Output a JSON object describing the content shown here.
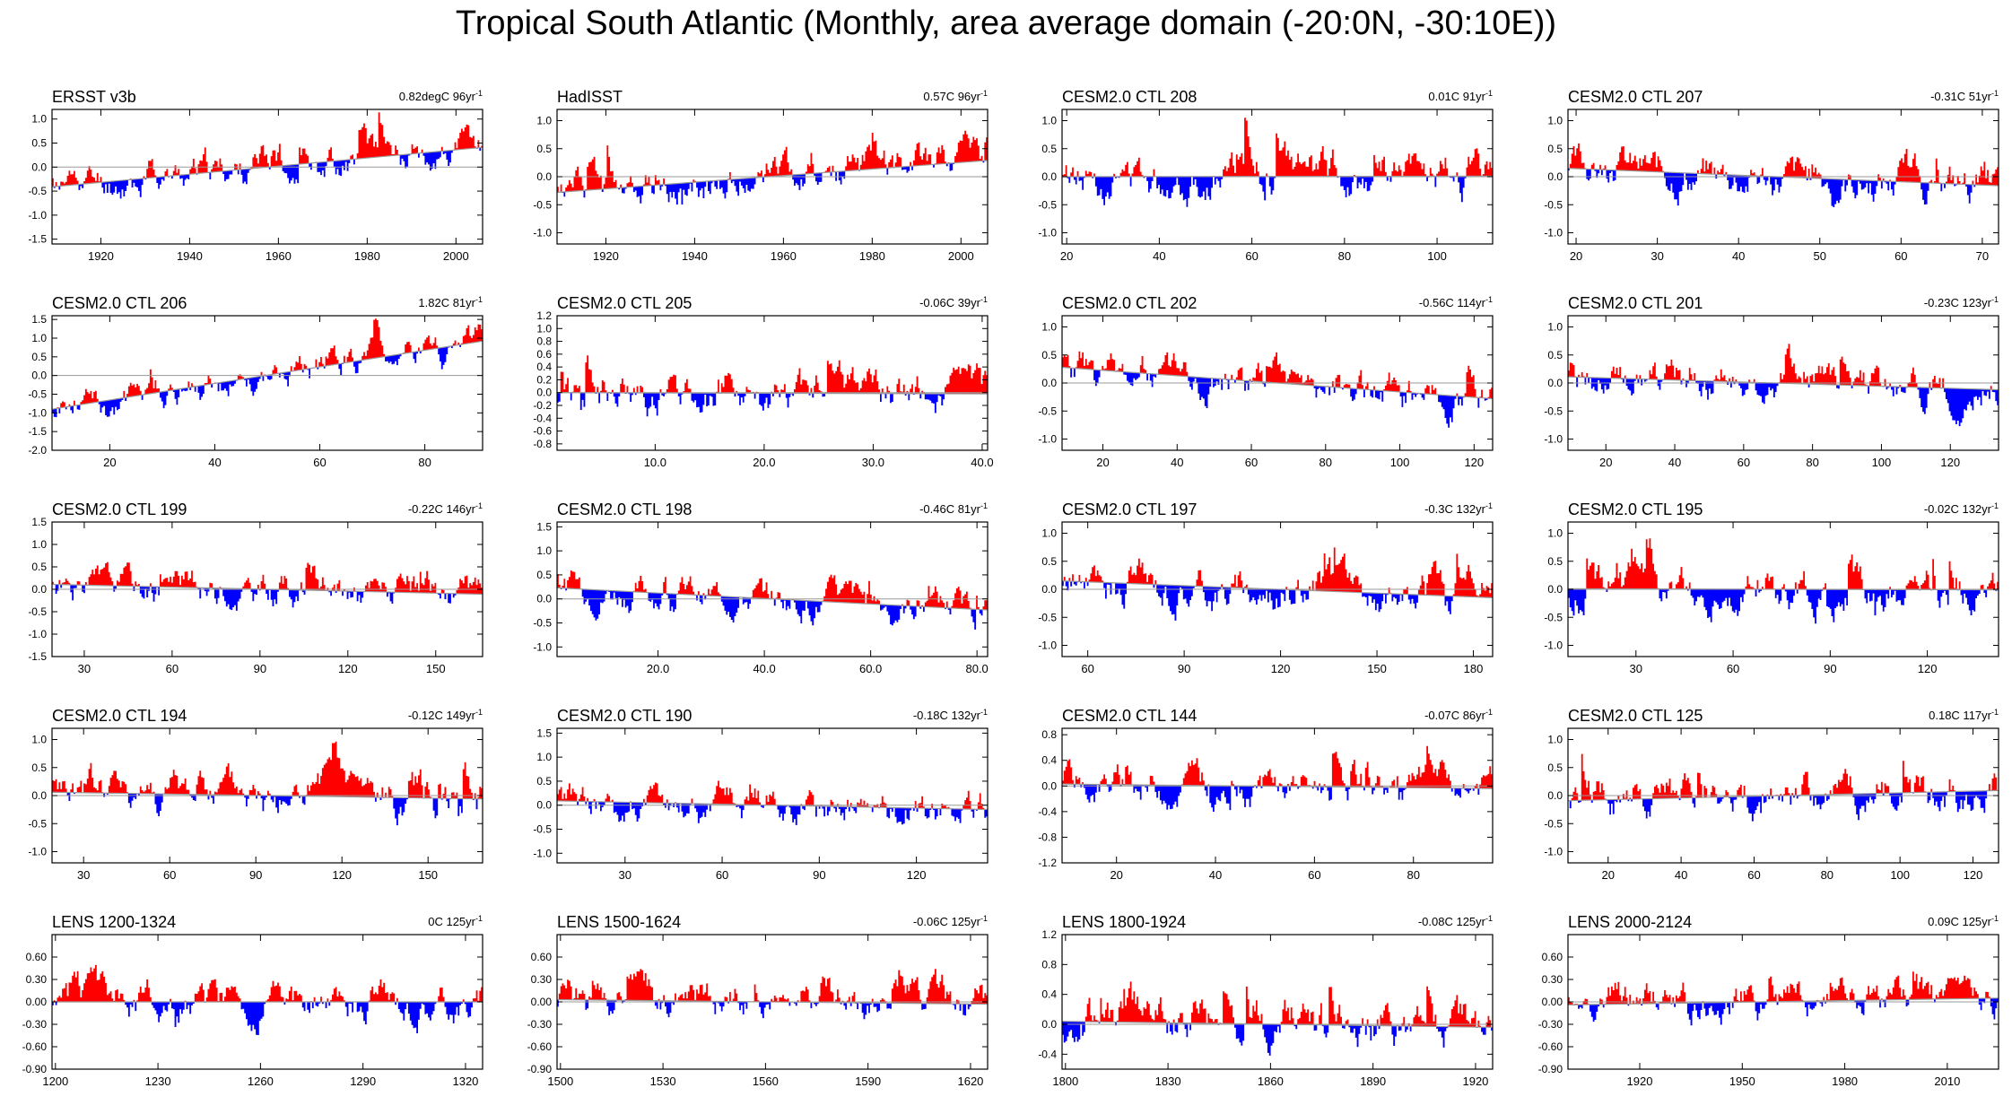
{
  "title": "Tropical South Atlantic (Monthly, area average domain (-20:0N, -30:10E))",
  "colors": {
    "positive": "#ff0000",
    "negative": "#0000ff",
    "trend": "#9a9a9a",
    "frame": "#000000"
  },
  "chart_data": [
    {
      "type": "bar",
      "title": "ERSST v3b",
      "trend_label": "0.82degC 96yr",
      "trend_sup": "-1",
      "xlim": [
        1909,
        2006
      ],
      "ylim": [
        -1.6,
        1.2
      ],
      "yticks": [
        -1.5,
        -1.0,
        -0.5,
        0.0,
        0.5,
        1.0
      ],
      "ytick_labels": [
        "-1.5",
        "-1.0",
        "-0.5",
        "0.0",
        "0.5",
        "1.0"
      ],
      "xticks": [
        1920,
        1940,
        1960,
        1980,
        2000
      ],
      "xtick_labels": [
        "1920",
        "1940",
        "1960",
        "1980",
        "2000"
      ],
      "trend": [
        -0.41,
        0.41
      ],
      "amp": 0.45,
      "seed": 11
    },
    {
      "type": "bar",
      "title": "HadISST",
      "trend_label": "0.57C 96yr",
      "trend_sup": "-1",
      "xlim": [
        1909,
        2006
      ],
      "ylim": [
        -1.2,
        1.2
      ],
      "yticks": [
        -1.0,
        -0.5,
        0.0,
        0.5,
        1.0
      ],
      "ytick_labels": [
        "-1.0",
        "-0.5",
        "0.0",
        "0.5",
        "1.0"
      ],
      "xticks": [
        1920,
        1940,
        1960,
        1980,
        2000
      ],
      "xtick_labels": [
        "1920",
        "1940",
        "1960",
        "1980",
        "2000"
      ],
      "trend": [
        -0.28,
        0.29
      ],
      "amp": 0.42,
      "seed": 12
    },
    {
      "type": "bar",
      "title": "CESM2.0 CTL 208",
      "trend_label": "0.01C 91yr",
      "trend_sup": "-1",
      "xlim": [
        19,
        112
      ],
      "ylim": [
        -1.2,
        1.2
      ],
      "yticks": [
        -1.0,
        -0.5,
        0.0,
        0.5,
        1.0
      ],
      "ytick_labels": [
        "-1.0",
        "-0.5",
        "0.0",
        "0.5",
        "1.0"
      ],
      "xticks": [
        20,
        40,
        60,
        80,
        100
      ],
      "xtick_labels": [
        "20",
        "40",
        "60",
        "80",
        "100"
      ],
      "trend": [
        0.0,
        0.01
      ],
      "amp": 0.45,
      "seed": 13
    },
    {
      "type": "bar",
      "title": "CESM2.0 CTL 207",
      "trend_label": "-0.31C 51yr",
      "trend_sup": "-1",
      "xlim": [
        19,
        72
      ],
      "ylim": [
        -1.2,
        1.2
      ],
      "yticks": [
        -1.0,
        -0.5,
        0.0,
        0.5,
        1.0
      ],
      "ytick_labels": [
        "-1.0",
        "-0.5",
        "0.0",
        "0.5",
        "1.0"
      ],
      "xticks": [
        20,
        30,
        40,
        50,
        60,
        70
      ],
      "xtick_labels": [
        "20",
        "30",
        "40",
        "50",
        "60",
        "70"
      ],
      "trend": [
        0.15,
        -0.16
      ],
      "amp": 0.45,
      "seed": 14
    },
    {
      "type": "bar",
      "title": "CESM2.0 CTL 206",
      "trend_label": "1.82C 81yr",
      "trend_sup": "-1",
      "xlim": [
        9,
        91
      ],
      "ylim": [
        -2.0,
        1.6
      ],
      "yticks": [
        -2.0,
        -1.5,
        -1.0,
        -0.5,
        0.0,
        0.5,
        1.0,
        1.5
      ],
      "ytick_labels": [
        "-2.0",
        "-1.5",
        "-1.0",
        "-0.5",
        "0.0",
        "0.5",
        "1.0",
        "1.5"
      ],
      "xticks": [
        20,
        40,
        60,
        80
      ],
      "xtick_labels": [
        "20",
        "40",
        "60",
        "80"
      ],
      "trend": [
        -0.9,
        0.92
      ],
      "amp": 0.5,
      "seed": 21
    },
    {
      "type": "bar",
      "title": "CESM2.0 CTL 205",
      "trend_label": "-0.06C 39yr",
      "trend_sup": "-1",
      "xlim": [
        1,
        40.5
      ],
      "ylim": [
        -0.9,
        1.2
      ],
      "yticks": [
        -0.8,
        -0.6,
        -0.4,
        -0.2,
        0.0,
        0.2,
        0.4,
        0.6,
        0.8,
        1.0,
        1.2
      ],
      "ytick_labels": [
        "-0.8",
        "-0.6",
        "-0.4",
        "-0.2",
        "0.0",
        "0.2",
        "0.4",
        "0.6",
        "0.8",
        "1.0",
        "1.2"
      ],
      "xticks": [
        10,
        20,
        30,
        40
      ],
      "xtick_labels": [
        "10.0",
        "20.0",
        "30.0",
        "40.0"
      ],
      "trend": [
        0.0,
        -0.02
      ],
      "amp": 0.4,
      "seed": 22
    },
    {
      "type": "bar",
      "title": "CESM2.0 CTL 202",
      "trend_label": "-0.56C 114yr",
      "trend_sup": "-1",
      "xlim": [
        9,
        125
      ],
      "ylim": [
        -1.2,
        1.2
      ],
      "yticks": [
        -1.0,
        -0.5,
        0.0,
        0.5,
        1.0
      ],
      "ytick_labels": [
        "-1.0",
        "-0.5",
        "0.0",
        "0.5",
        "1.0"
      ],
      "xticks": [
        20,
        40,
        60,
        80,
        100,
        120
      ],
      "xtick_labels": [
        "20",
        "40",
        "60",
        "80",
        "100",
        "120"
      ],
      "trend": [
        0.28,
        -0.28
      ],
      "amp": 0.42,
      "seed": 23
    },
    {
      "type": "bar",
      "title": "CESM2.0 CTL 201",
      "trend_label": "-0.23C 123yr",
      "trend_sup": "-1",
      "xlim": [
        9,
        134
      ],
      "ylim": [
        -1.2,
        1.2
      ],
      "yticks": [
        -1.0,
        -0.5,
        0.0,
        0.5,
        1.0
      ],
      "ytick_labels": [
        "-1.0",
        "-0.5",
        "0.0",
        "0.5",
        "1.0"
      ],
      "xticks": [
        20,
        40,
        60,
        80,
        100,
        120
      ],
      "xtick_labels": [
        "20",
        "40",
        "60",
        "80",
        "100",
        "120"
      ],
      "trend": [
        0.11,
        -0.12
      ],
      "amp": 0.42,
      "seed": 24
    },
    {
      "type": "bar",
      "title": "CESM2.0 CTL 199",
      "trend_label": "-0.22C 146yr",
      "trend_sup": "-1",
      "xlim": [
        19,
        166
      ],
      "ylim": [
        -1.5,
        1.5
      ],
      "yticks": [
        -1.5,
        -1.0,
        -0.5,
        0.0,
        0.5,
        1.0,
        1.5
      ],
      "ytick_labels": [
        "-1.5",
        "-1.0",
        "-0.5",
        "0.0",
        "0.5",
        "1.0",
        "1.5"
      ],
      "xticks": [
        30,
        60,
        90,
        120,
        150
      ],
      "xtick_labels": [
        "30",
        "60",
        "90",
        "120",
        "150"
      ],
      "trend": [
        0.11,
        -0.11
      ],
      "amp": 0.45,
      "seed": 31
    },
    {
      "type": "bar",
      "title": "CESM2.0 CTL 198",
      "trend_label": "-0.46C 81yr",
      "trend_sup": "-1",
      "xlim": [
        1,
        82
      ],
      "ylim": [
        -1.2,
        1.6
      ],
      "yticks": [
        -1.0,
        -0.5,
        0.0,
        0.5,
        1.0,
        1.5
      ],
      "ytick_labels": [
        "-1.0",
        "-0.5",
        "0.0",
        "0.5",
        "1.0",
        "1.5"
      ],
      "xticks": [
        20,
        40,
        60,
        80
      ],
      "xtick_labels": [
        "20.0",
        "40.0",
        "60.0",
        "80.0"
      ],
      "trend": [
        0.23,
        -0.23
      ],
      "amp": 0.42,
      "seed": 32
    },
    {
      "type": "bar",
      "title": "CESM2.0 CTL 197",
      "trend_label": "-0.3C 132yr",
      "trend_sup": "-1",
      "xlim": [
        52,
        186
      ],
      "ylim": [
        -1.2,
        1.2
      ],
      "yticks": [
        -1.0,
        -0.5,
        0.0,
        0.5,
        1.0
      ],
      "ytick_labels": [
        "-1.0",
        "-0.5",
        "0.0",
        "0.5",
        "1.0"
      ],
      "xticks": [
        60,
        90,
        120,
        150,
        180
      ],
      "xtick_labels": [
        "60",
        "90",
        "120",
        "150",
        "180"
      ],
      "trend": [
        0.15,
        -0.15
      ],
      "amp": 0.45,
      "seed": 33
    },
    {
      "type": "bar",
      "title": "CESM2.0 CTL 195",
      "trend_label": "-0.02C 132yr",
      "trend_sup": "-1",
      "xlim": [
        9,
        142
      ],
      "ylim": [
        -1.2,
        1.2
      ],
      "yticks": [
        -1.0,
        -0.5,
        0.0,
        0.5,
        1.0
      ],
      "ytick_labels": [
        "-1.0",
        "-0.5",
        "0.0",
        "0.5",
        "1.0"
      ],
      "xticks": [
        30,
        60,
        90,
        120
      ],
      "xtick_labels": [
        "30",
        "60",
        "90",
        "120"
      ],
      "trend": [
        0.01,
        -0.01
      ],
      "amp": 0.45,
      "seed": 34
    },
    {
      "type": "bar",
      "title": "CESM2.0 CTL 194",
      "trend_label": "-0.12C 149yr",
      "trend_sup": "-1",
      "xlim": [
        19,
        169
      ],
      "ylim": [
        -1.2,
        1.2
      ],
      "yticks": [
        -1.0,
        -0.5,
        0.0,
        0.5,
        1.0
      ],
      "ytick_labels": [
        "-1.0",
        "-0.5",
        "0.0",
        "0.5",
        "1.0"
      ],
      "xticks": [
        30,
        60,
        90,
        120,
        150
      ],
      "xtick_labels": [
        "30",
        "60",
        "90",
        "120",
        "150"
      ],
      "trend": [
        0.06,
        -0.06
      ],
      "amp": 0.45,
      "seed": 41
    },
    {
      "type": "bar",
      "title": "CESM2.0 CTL 190",
      "trend_label": "-0.18C 132yr",
      "trend_sup": "-1",
      "xlim": [
        9,
        142
      ],
      "ylim": [
        -1.2,
        1.6
      ],
      "yticks": [
        -1.0,
        -0.5,
        0.0,
        0.5,
        1.0,
        1.5
      ],
      "ytick_labels": [
        "-1.0",
        "-0.5",
        "0.0",
        "0.5",
        "1.0",
        "1.5"
      ],
      "xticks": [
        30,
        60,
        90,
        120
      ],
      "xtick_labels": [
        "30",
        "60",
        "90",
        "120"
      ],
      "trend": [
        0.09,
        -0.09
      ],
      "amp": 0.45,
      "seed": 42
    },
    {
      "type": "bar",
      "title": "CESM2.0 CTL 144",
      "trend_label": "-0.07C 86yr",
      "trend_sup": "-1",
      "xlim": [
        9,
        96
      ],
      "ylim": [
        -1.2,
        0.9
      ],
      "yticks": [
        -1.2,
        -0.8,
        -0.4,
        0.0,
        0.4,
        0.8
      ],
      "ytick_labels": [
        "-1.2",
        "-0.8",
        "-0.4",
        "0.0",
        "0.4",
        "0.8"
      ],
      "xticks": [
        20,
        40,
        60,
        80
      ],
      "xtick_labels": [
        "20",
        "40",
        "60",
        "80"
      ],
      "trend": [
        0.03,
        -0.04
      ],
      "amp": 0.35,
      "seed": 43
    },
    {
      "type": "bar",
      "title": "CESM2.0 CTL 125",
      "trend_label": "0.18C 117yr",
      "trend_sup": "-1",
      "xlim": [
        9,
        127
      ],
      "ylim": [
        -1.2,
        1.2
      ],
      "yticks": [
        -1.0,
        -0.5,
        0.0,
        0.5,
        1.0
      ],
      "ytick_labels": [
        "-1.0",
        "-0.5",
        "0.0",
        "0.5",
        "1.0"
      ],
      "xticks": [
        20,
        40,
        60,
        80,
        100,
        120
      ],
      "xtick_labels": [
        "20",
        "40",
        "60",
        "80",
        "100",
        "120"
      ],
      "trend": [
        -0.09,
        0.09
      ],
      "amp": 0.45,
      "seed": 44
    },
    {
      "type": "bar",
      "title": "LENS 1200-1324",
      "trend_label": "0C 125yr",
      "trend_sup": "-1",
      "xlim": [
        1199,
        1325
      ],
      "ylim": [
        -0.9,
        0.9
      ],
      "yticks": [
        -0.9,
        -0.6,
        -0.3,
        0.0,
        0.3,
        0.6
      ],
      "ytick_labels": [
        "-0.90",
        "-0.60",
        "-0.30",
        "0.00",
        "0.30",
        "0.60"
      ],
      "xticks": [
        1200,
        1230,
        1260,
        1290,
        1320
      ],
      "xtick_labels": [
        "1200",
        "1230",
        "1260",
        "1290",
        "1320"
      ],
      "trend": [
        0.0,
        0.0
      ],
      "amp": 0.3,
      "seed": 51
    },
    {
      "type": "bar",
      "title": "LENS 1500-1624",
      "trend_label": "-0.06C 125yr",
      "trend_sup": "-1",
      "xlim": [
        1499,
        1625
      ],
      "ylim": [
        -0.9,
        0.9
      ],
      "yticks": [
        -0.9,
        -0.6,
        -0.3,
        0.0,
        0.3,
        0.6
      ],
      "ytick_labels": [
        "-0.90",
        "-0.60",
        "-0.30",
        "0.00",
        "0.30",
        "0.60"
      ],
      "xticks": [
        1500,
        1530,
        1560,
        1590,
        1620
      ],
      "xtick_labels": [
        "1500",
        "1530",
        "1560",
        "1590",
        "1620"
      ],
      "trend": [
        0.03,
        -0.03
      ],
      "amp": 0.3,
      "seed": 52
    },
    {
      "type": "bar",
      "title": "LENS 1800-1924",
      "trend_label": "-0.08C 125yr",
      "trend_sup": "-1",
      "xlim": [
        1799,
        1925
      ],
      "ylim": [
        -0.6,
        1.2
      ],
      "yticks": [
        -0.4,
        0.0,
        0.4,
        0.8,
        1.2
      ],
      "ytick_labels": [
        "-0.4",
        "0.0",
        "0.4",
        "0.8",
        "1.2"
      ],
      "xticks": [
        1800,
        1830,
        1860,
        1890,
        1920
      ],
      "xtick_labels": [
        "1800",
        "1830",
        "1860",
        "1890",
        "1920"
      ],
      "trend": [
        0.04,
        -0.04
      ],
      "amp": 0.38,
      "seed": 53
    },
    {
      "type": "bar",
      "title": "LENS 2000-2124",
      "trend_label": "0.09C 125yr",
      "trend_sup": "-1",
      "xlim": [
        1899,
        2025
      ],
      "ylim": [
        -0.9,
        0.9
      ],
      "yticks": [
        -0.9,
        -0.6,
        -0.3,
        0.0,
        0.3,
        0.6
      ],
      "ytick_labels": [
        "-0.90",
        "-0.60",
        "-0.30",
        "0.00",
        "0.30",
        "0.60"
      ],
      "xticks": [
        1920,
        1950,
        1980,
        2010
      ],
      "xtick_labels": [
        "1920",
        "1950",
        "1980",
        "2010"
      ],
      "trend": [
        -0.04,
        0.05
      ],
      "amp": 0.3,
      "seed": 54
    }
  ]
}
